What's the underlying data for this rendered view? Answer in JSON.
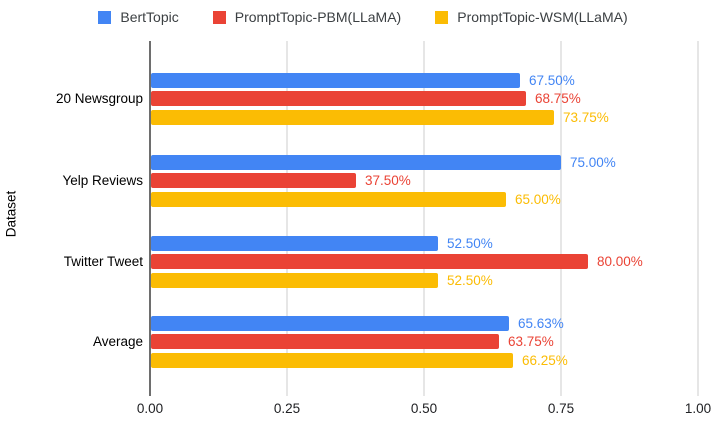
{
  "colors": {
    "series_blue": "#4285F4",
    "series_red": "#EA4335",
    "series_yellow": "#FBBC04",
    "gridline": "#e6e6e6",
    "baseline": "#6e6e6e",
    "legend_text": "#3c4043",
    "axis_text": "#202124",
    "background": "#ffffff"
  },
  "legend": {
    "items": [
      {
        "label": "BertTopic",
        "color": "#4285F4"
      },
      {
        "label": "PromptTopic-PBM(LLaMA)",
        "color": "#EA4335"
      },
      {
        "label": "PromptTopic-WSM(LLaMA)",
        "color": "#FBBC04"
      }
    ]
  },
  "chart_data": {
    "type": "bar",
    "orientation": "horizontal",
    "title": "",
    "xlabel": "",
    "ylabel": "Dataset",
    "xlim": [
      0,
      1
    ],
    "x_ticks": [
      "0.00",
      "0.25",
      "0.50",
      "0.75",
      "1.00"
    ],
    "grid": true,
    "legend_position": "top",
    "categories": [
      "20 Newsgroup",
      "Yelp Reviews",
      "Twitter Tweet",
      "Average"
    ],
    "series": [
      {
        "name": "BertTopic",
        "color": "#4285F4",
        "values": [
          0.675,
          0.75,
          0.525,
          0.6563
        ],
        "labels": [
          "67.50%",
          "75.00%",
          "52.50%",
          "65.63%"
        ]
      },
      {
        "name": "PromptTopic-PBM(LLaMA)",
        "color": "#EA4335",
        "values": [
          0.6875,
          0.375,
          0.8,
          0.6375
        ],
        "labels": [
          "68.75%",
          "37.50%",
          "80.00%",
          "63.75%"
        ]
      },
      {
        "name": "PromptTopic-WSM(LLaMA)",
        "color": "#FBBC04",
        "values": [
          0.7375,
          0.65,
          0.525,
          0.6625
        ],
        "labels": [
          "73.75%",
          "65.00%",
          "52.50%",
          "66.25%"
        ]
      }
    ]
  }
}
